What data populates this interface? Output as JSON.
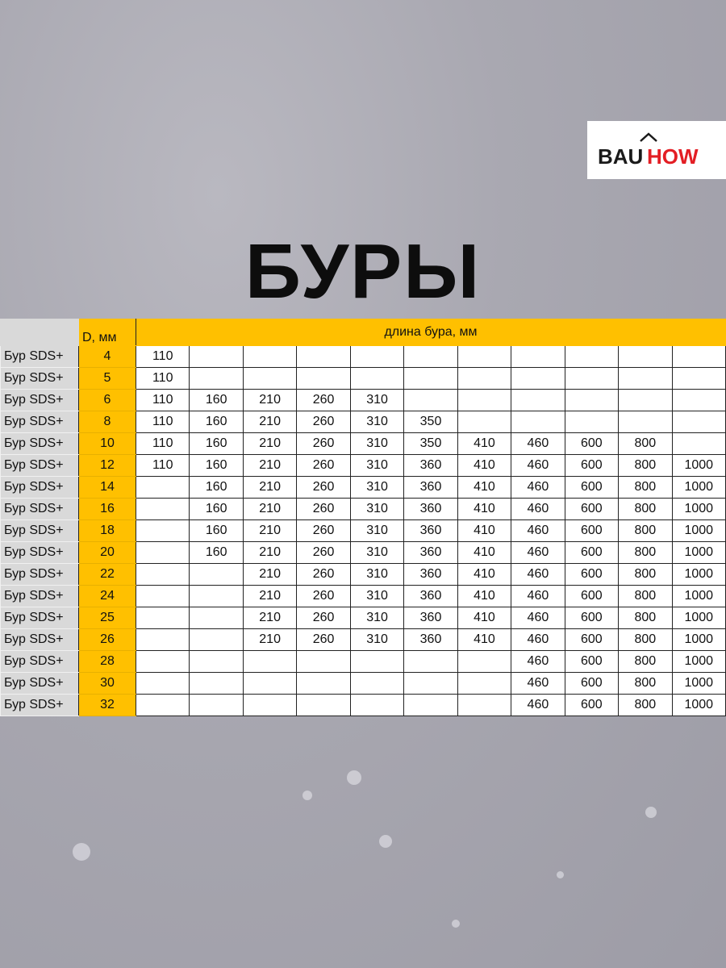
{
  "logo": {
    "text_left": "BAU",
    "text_right": "HOW",
    "colors": {
      "left": "#1a1a1a",
      "right": "#e31e24"
    }
  },
  "title": "БУРЫ",
  "table": {
    "header_d": "D, мм",
    "header_length": "длина бура, мм",
    "colors": {
      "header": "#ffc000",
      "label": "#d9d9d9"
    },
    "rows": [
      {
        "label": "Бур SDS+",
        "d": "4",
        "lengths": [
          "110",
          "",
          "",
          "",
          "",
          "",
          "",
          "",
          "",
          "",
          ""
        ]
      },
      {
        "label": "Бур SDS+",
        "d": "5",
        "lengths": [
          "110",
          "",
          "",
          "",
          "",
          "",
          "",
          "",
          "",
          "",
          ""
        ]
      },
      {
        "label": "Бур SDS+",
        "d": "6",
        "lengths": [
          "110",
          "160",
          "210",
          "260",
          "310",
          "",
          "",
          "",
          "",
          "",
          ""
        ]
      },
      {
        "label": "Бур SDS+",
        "d": "8",
        "lengths": [
          "110",
          "160",
          "210",
          "260",
          "310",
          "350",
          "",
          "",
          "",
          "",
          ""
        ]
      },
      {
        "label": "Бур SDS+",
        "d": "10",
        "lengths": [
          "110",
          "160",
          "210",
          "260",
          "310",
          "350",
          "410",
          "460",
          "600",
          "800",
          ""
        ]
      },
      {
        "label": "Бур SDS+",
        "d": "12",
        "lengths": [
          "110",
          "160",
          "210",
          "260",
          "310",
          "360",
          "410",
          "460",
          "600",
          "800",
          "1000"
        ]
      },
      {
        "label": "Бур SDS+",
        "d": "14",
        "lengths": [
          "",
          "160",
          "210",
          "260",
          "310",
          "360",
          "410",
          "460",
          "600",
          "800",
          "1000"
        ]
      },
      {
        "label": "Бур SDS+",
        "d": "16",
        "lengths": [
          "",
          "160",
          "210",
          "260",
          "310",
          "360",
          "410",
          "460",
          "600",
          "800",
          "1000"
        ]
      },
      {
        "label": "Бур SDS+",
        "d": "18",
        "lengths": [
          "",
          "160",
          "210",
          "260",
          "310",
          "360",
          "410",
          "460",
          "600",
          "800",
          "1000"
        ]
      },
      {
        "label": "Бур SDS+",
        "d": "20",
        "lengths": [
          "",
          "160",
          "210",
          "260",
          "310",
          "360",
          "410",
          "460",
          "600",
          "800",
          "1000"
        ]
      },
      {
        "label": "Бур SDS+",
        "d": "22",
        "lengths": [
          "",
          "",
          "210",
          "260",
          "310",
          "360",
          "410",
          "460",
          "600",
          "800",
          "1000"
        ]
      },
      {
        "label": "Бур SDS+",
        "d": "24",
        "lengths": [
          "",
          "",
          "210",
          "260",
          "310",
          "360",
          "410",
          "460",
          "600",
          "800",
          "1000"
        ]
      },
      {
        "label": "Бур SDS+",
        "d": "25",
        "lengths": [
          "",
          "",
          "210",
          "260",
          "310",
          "360",
          "410",
          "460",
          "600",
          "800",
          "1000"
        ]
      },
      {
        "label": "Бур SDS+",
        "d": "26",
        "lengths": [
          "",
          "",
          "210",
          "260",
          "310",
          "360",
          "410",
          "460",
          "600",
          "800",
          "1000"
        ]
      },
      {
        "label": "Бур SDS+",
        "d": "28",
        "lengths": [
          "",
          "",
          "",
          "",
          "",
          "",
          "",
          "460",
          "600",
          "800",
          "1000"
        ]
      },
      {
        "label": "Бур SDS+",
        "d": "30",
        "lengths": [
          "",
          "",
          "",
          "",
          "",
          "",
          "",
          "460",
          "600",
          "800",
          "1000"
        ]
      },
      {
        "label": "Бур SDS+",
        "d": "32",
        "lengths": [
          "",
          "",
          "",
          "",
          "",
          "",
          "",
          "460",
          "600",
          "800",
          "1000"
        ]
      }
    ]
  }
}
